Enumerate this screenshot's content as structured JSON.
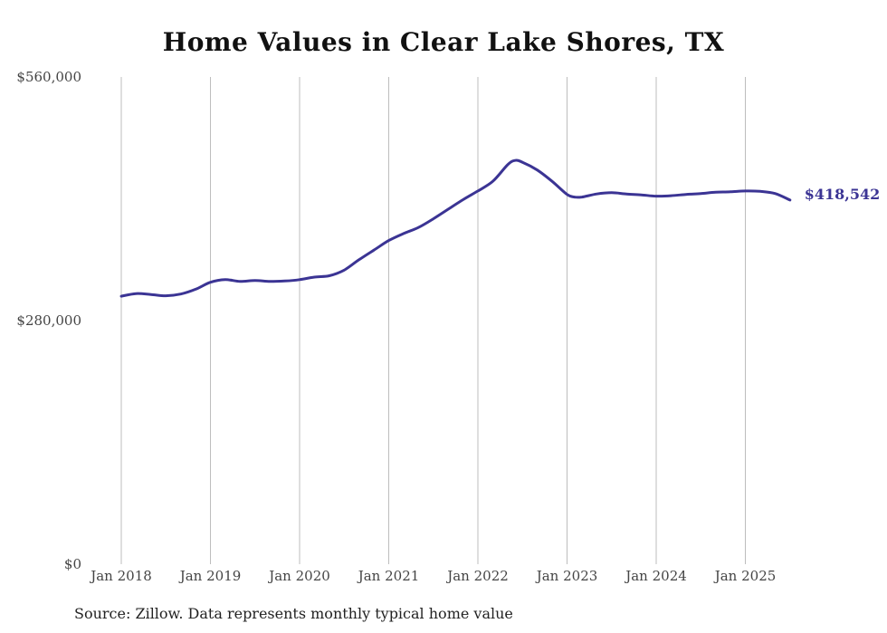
{
  "chart_data": {
    "type": "line",
    "title": "Home Values in Clear Lake Shores, TX",
    "source": "Source: Zillow. Data represents monthly typical home value",
    "xlabel": "",
    "ylabel": "",
    "ylim": [
      0,
      560000
    ],
    "yticks": [
      {
        "value": 0,
        "label": "$0"
      },
      {
        "value": 280000,
        "label": "$280,000"
      },
      {
        "value": 560000,
        "label": "$560,000"
      }
    ],
    "xticks": [
      {
        "value": "2018-01",
        "label": "Jan 2018"
      },
      {
        "value": "2019-01",
        "label": "Jan 2019"
      },
      {
        "value": "2020-01",
        "label": "Jan 2020"
      },
      {
        "value": "2021-01",
        "label": "Jan 2021"
      },
      {
        "value": "2022-01",
        "label": "Jan 2022"
      },
      {
        "value": "2023-01",
        "label": "Jan 2023"
      },
      {
        "value": "2024-01",
        "label": "Jan 2024"
      },
      {
        "value": "2025-01",
        "label": "Jan 2025"
      }
    ],
    "grid": "vertical",
    "line_color": "#3b3494",
    "end_label": "$418,542",
    "series": [
      {
        "x": [
          "2018-01",
          "2018-03",
          "2018-05",
          "2018-07",
          "2018-09",
          "2018-11",
          "2019-01",
          "2019-03",
          "2019-05",
          "2019-07",
          "2019-09",
          "2019-11",
          "2020-01",
          "2020-03",
          "2020-05",
          "2020-07",
          "2020-09",
          "2020-11",
          "2021-01",
          "2021-03",
          "2021-05",
          "2021-07",
          "2021-09",
          "2021-11",
          "2022-01",
          "2022-03",
          "2022-05",
          "2022-06",
          "2022-07",
          "2022-09",
          "2022-11",
          "2023-01",
          "2023-02",
          "2023-03",
          "2023-05",
          "2023-07",
          "2023-09",
          "2023-11",
          "2024-01",
          "2024-03",
          "2024-05",
          "2024-07",
          "2024-09",
          "2024-11",
          "2025-01",
          "2025-03",
          "2025-05",
          "2025-07"
        ],
        "values": [
          308000,
          311000,
          310000,
          308500,
          310500,
          316000,
          324000,
          327000,
          325000,
          326000,
          325000,
          325500,
          327000,
          330000,
          331500,
          338000,
          350000,
          361000,
          372000,
          380000,
          387000,
          397000,
          408000,
          419000,
          429000,
          440000,
          459000,
          464000,
          462000,
          453000,
          440000,
          425000,
          422000,
          422000,
          425500,
          427000,
          425500,
          424500,
          423000,
          423500,
          425000,
          426000,
          427500,
          428000,
          429000,
          428500,
          426000,
          418542
        ]
      }
    ]
  }
}
